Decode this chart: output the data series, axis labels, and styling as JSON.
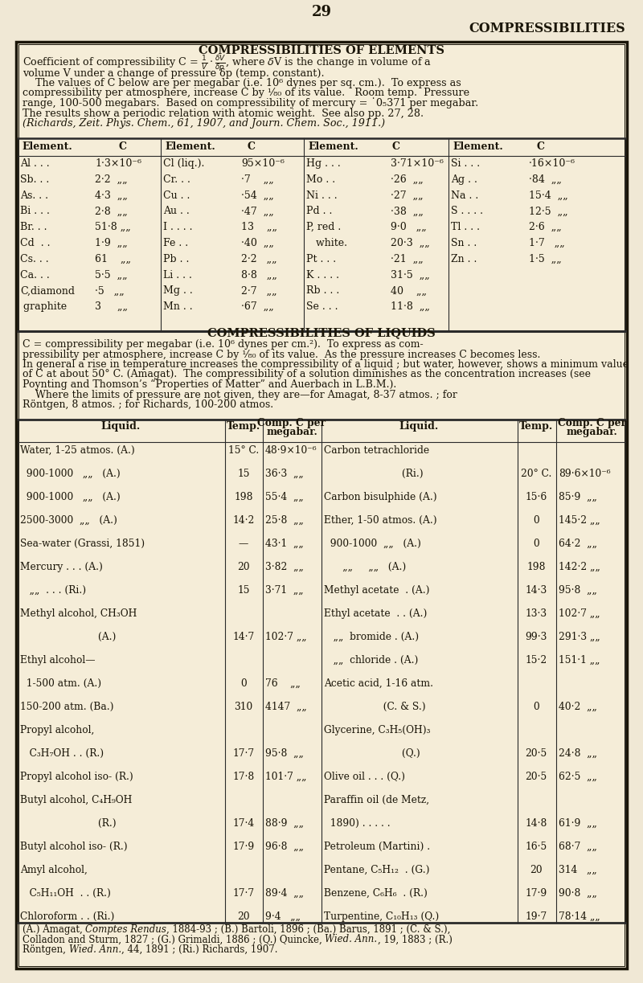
{
  "bg_color": "#f0e8d5",
  "table_bg": "#f5edd8",
  "text_color": "#1a1508",
  "page_number": "29",
  "right_header": "COMPRESSIBILITIES",
  "box_title": "COMPRESSIBILITIES OF ELEMENTS",
  "liquids_title": "COMPRESSIBILITIES OF LIQUIDS",
  "elem_rows": [
    [
      "Al . . .",
      "1·3×10⁻⁶",
      "Cl (liq.).",
      "95×10⁻⁶",
      "Hg . . .",
      "3·71×10⁻⁶",
      "Si . . .",
      "·16×10⁻⁶"
    ],
    [
      "Sb. . .",
      "2·2  „„",
      "Cr. . .",
      "·7    „„",
      "Mo . .",
      "·26  „„",
      "Ag . .",
      "·84  „„"
    ],
    [
      "As. . .",
      "4·3  „„",
      "Cu . .",
      "·54  „„",
      "Ni . . .",
      "·27  „„",
      "Na . .",
      "15·4  „„"
    ],
    [
      "Bi . . .",
      "2·8  „„",
      "Au . .",
      "·47  „„",
      "Pd . .",
      "·38  „„",
      "S . . . .",
      "12·5  „„"
    ],
    [
      "Br. . .",
      "51·8 „„",
      "I . . . .",
      "13    „„",
      "P, red .",
      "9·0   „„",
      "Tl . . .",
      "2·6  „„"
    ],
    [
      "Cd  . .",
      "1·9  „„",
      "Fe . .",
      "·40  „„",
      "   white.",
      "20·3  „„",
      "Sn . .",
      "1·7   „„"
    ],
    [
      "Cs. . .",
      "61    „„",
      "Pb . .",
      "2·2   „„",
      "Pt . . .",
      "·21  „„",
      "Zn . .",
      "1·5  „„"
    ],
    [
      "Ca. . .",
      "5·5  „„",
      "Li . . .",
      "8·8   „„",
      "K . . . .",
      "31·5  „„",
      "",
      ""
    ],
    [
      "C,diamond",
      "·5   „„",
      "Mg . .",
      "2·7   „„",
      "Rb . . .",
      "40    „„",
      "",
      ""
    ],
    [
      " graphite",
      "3     „„",
      "Mn . .",
      "·67  „„",
      "Se . . .",
      "11·8  „„",
      "",
      ""
    ]
  ],
  "liq_rows": [
    [
      "Water, 1-25 atmos. (A.)",
      "15° C.",
      "48·9×10⁻⁶",
      "Carbon tetrachloride",
      "",
      ""
    ],
    [
      "  900-1000   „„   (A.)",
      "15",
      "36·3  „„",
      "                         (Ri.)",
      "20° C.",
      "89·6×10⁻⁶"
    ],
    [
      "  900-1000   „„   (A.)",
      "198",
      "55·4  „„",
      "Carbon bisulphide (A.)",
      "15·6",
      "85·9  „„"
    ],
    [
      "2500-3000  „„   (A.)",
      "14·2",
      "25·8  „„",
      "Ether, 1-50 atmos. (A.)",
      "0",
      "145·2 „„"
    ],
    [
      "Sea-water (Grassi, 1851)",
      "—",
      "43·1  „„",
      "  900-1000  „„   (A.)",
      "0",
      "64·2  „„"
    ],
    [
      "Mercury . . . (A.)",
      "20",
      "3·82  „„",
      "      „„     „„   (A.)",
      "198",
      "142·2 „„"
    ],
    [
      "   „„  . . . (Ri.)",
      "15",
      "3·71  „„",
      "Methyl acetate  . (A.)",
      "14·3",
      "95·8  „„"
    ],
    [
      "Methyl alcohol, CH₃OH",
      "",
      "",
      "Ethyl acetate  . . (A.)",
      "13·3",
      "102·7 „„"
    ],
    [
      "                         (A.)",
      "14·7",
      "102·7 „„",
      "   „„  bromide . (A.)",
      "99·3",
      "291·3 „„"
    ],
    [
      "Ethyl alcohol—",
      "",
      "",
      "   „„  chloride . (A.)",
      "15·2",
      "151·1 „„"
    ],
    [
      "  1-500 atm. (A.)",
      "0",
      "76    „„",
      "Acetic acid, 1-16 atm.",
      "",
      ""
    ],
    [
      "150-200 atm. (Ba.)",
      "310",
      "4147  „„",
      "                   (C. & S.)",
      "0",
      "40·2  „„"
    ],
    [
      "Propyl alcohol,",
      "",
      "",
      "Glycerine, C₃H₅(OH)₃",
      "",
      ""
    ],
    [
      "   C₃H₇OH . . (R.)",
      "17·7",
      "95·8  „„",
      "                         (Q.)",
      "20·5",
      "24·8  „„"
    ],
    [
      "Propyl alcohol iso- (R.)",
      "17·8",
      "101·7 „„",
      "Olive oil . . . (Q.)",
      "20·5",
      "62·5  „„"
    ],
    [
      "Butyl alcohol, C₄H₉OH",
      "",
      "",
      "Paraffin oil (de Metz,",
      "",
      ""
    ],
    [
      "                         (R.)",
      "17·4",
      "88·9  „„",
      "  1890) . . . . .",
      "14·8",
      "61·9  „„"
    ],
    [
      "Butyl alcohol iso- (R.)",
      "17·9",
      "96·8  „„",
      "Petroleum (Martini) .",
      "16·5",
      "68·7  „„"
    ],
    [
      "Amyl alcohol,",
      "",
      "",
      "Pentane, C₅H₁₂  . (G.)",
      "20",
      "314   „„"
    ],
    [
      "   C₅H₁₁OH  . . (R.)",
      "17·7",
      "89·4  „„",
      "Benzene, C₆H₆  . (R.)",
      "17·9",
      "90·8  „„"
    ],
    [
      "Chloroform . . (Ri.)",
      "20",
      "9·4   „„",
      "Turpentine, C₁₀H₁₃ (Q.)",
      "19·7",
      "78·14 „„"
    ]
  ]
}
